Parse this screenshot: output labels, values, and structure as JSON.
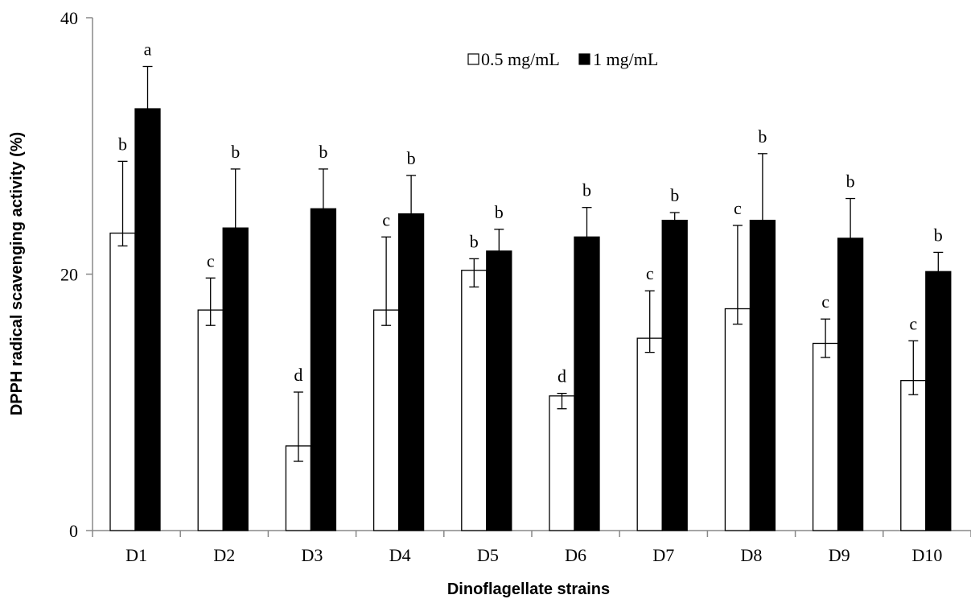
{
  "chart_data": {
    "type": "bar",
    "title": "",
    "xlabel": "Dinoflagellate strains",
    "ylabel": "DPPH radical scavenging  activity (%)",
    "ylim": [
      0,
      40
    ],
    "yticks": [
      "0",
      "20",
      "40"
    ],
    "categories": [
      "D1",
      "D2",
      "D3",
      "D4",
      "D5",
      "D6",
      "D7",
      "D8",
      "D9",
      "D10"
    ],
    "legend_position": "top-center",
    "grid": false,
    "series": [
      {
        "name": "0.5 mg/mL",
        "fill": "#ffffff",
        "values": [
          23.2,
          17.2,
          6.6,
          17.2,
          20.3,
          10.5,
          15.0,
          17.3,
          14.6,
          11.7
        ],
        "err_up": [
          5.6,
          2.5,
          4.2,
          5.7,
          0.9,
          0.2,
          3.7,
          6.5,
          1.9,
          3.1
        ],
        "err_down": [
          1.0,
          1.2,
          1.2,
          1.2,
          1.3,
          1.0,
          1.1,
          1.2,
          1.1,
          1.1
        ],
        "letters": [
          "b",
          "c",
          "d",
          "c",
          "b",
          "d",
          "c",
          "c",
          "c",
          "c"
        ]
      },
      {
        "name": "1 mg/mL",
        "fill": "#000000",
        "values": [
          32.9,
          23.6,
          25.1,
          24.7,
          21.8,
          22.9,
          24.2,
          24.2,
          22.8,
          20.2
        ],
        "err_up": [
          3.3,
          4.6,
          3.1,
          3.0,
          1.7,
          2.3,
          0.6,
          5.2,
          3.1,
          1.5
        ],
        "err_down": [
          0,
          0,
          0,
          0,
          0,
          0,
          0,
          0,
          0,
          0
        ],
        "letters": [
          "a",
          "b",
          "b",
          "b",
          "b",
          "b",
          "b",
          "b",
          "b",
          "b"
        ]
      }
    ]
  }
}
